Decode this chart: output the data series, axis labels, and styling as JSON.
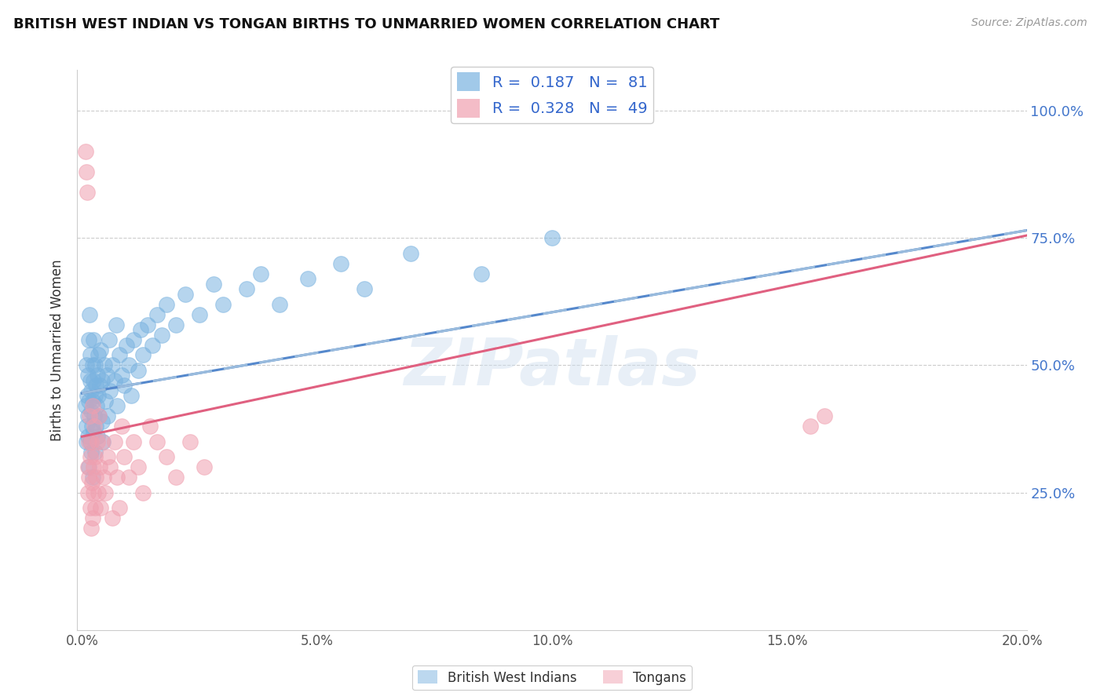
{
  "title": "BRITISH WEST INDIAN VS TONGAN BIRTHS TO UNMARRIED WOMEN CORRELATION CHART",
  "source": "Source: ZipAtlas.com",
  "ylabel": "Births to Unmarried Women",
  "legend_labels": [
    "British West Indians",
    "Tongans"
  ],
  "blue_R": 0.187,
  "blue_N": 81,
  "pink_R": 0.328,
  "pink_N": 49,
  "xlim": [
    -0.001,
    0.201
  ],
  "ylim": [
    -0.02,
    1.08
  ],
  "xtick_vals": [
    0.0,
    0.05,
    0.1,
    0.15,
    0.2
  ],
  "xtick_labels": [
    "0.0%",
    "5.0%",
    "10.0%",
    "15.0%",
    "20.0%"
  ],
  "ytick_vals": [
    0.25,
    0.5,
    0.75,
    1.0
  ],
  "ytick_labels": [
    "25.0%",
    "50.0%",
    "75.0%",
    "100.0%"
  ],
  "blue_color": "#7ab3e0",
  "pink_color": "#f0a0b0",
  "blue_line_color": "#5588cc",
  "pink_line_color": "#e06080",
  "blue_dash_color": "#99bbdd",
  "watermark_text": "ZIPatlas",
  "blue_line_x": [
    0.0,
    0.201
  ],
  "blue_line_y": [
    0.445,
    0.765
  ],
  "pink_line_x": [
    0.0,
    0.201
  ],
  "pink_line_y": [
    0.36,
    0.755
  ],
  "blue_scatter_x": [
    0.0008,
    0.0009,
    0.001,
    0.001,
    0.0011,
    0.0012,
    0.0013,
    0.0013,
    0.0014,
    0.0015,
    0.0015,
    0.0016,
    0.0017,
    0.0018,
    0.0018,
    0.0019,
    0.002,
    0.002,
    0.0021,
    0.0022,
    0.0022,
    0.0023,
    0.0024,
    0.0025,
    0.0025,
    0.0026,
    0.0027,
    0.0028,
    0.0028,
    0.0029,
    0.003,
    0.0031,
    0.0032,
    0.0033,
    0.0034,
    0.0035,
    0.0036,
    0.0038,
    0.004,
    0.0042,
    0.0043,
    0.0045,
    0.0047,
    0.005,
    0.0053,
    0.0055,
    0.0058,
    0.006,
    0.0065,
    0.007,
    0.0072,
    0.0075,
    0.008,
    0.0085,
    0.009,
    0.0095,
    0.01,
    0.0105,
    0.011,
    0.012,
    0.0125,
    0.013,
    0.014,
    0.015,
    0.016,
    0.017,
    0.018,
    0.02,
    0.022,
    0.025,
    0.028,
    0.03,
    0.035,
    0.038,
    0.042,
    0.048,
    0.055,
    0.06,
    0.07,
    0.085,
    0.1
  ],
  "blue_scatter_y": [
    0.42,
    0.38,
    0.5,
    0.35,
    0.44,
    0.4,
    0.36,
    0.48,
    0.55,
    0.43,
    0.3,
    0.6,
    0.47,
    0.35,
    0.52,
    0.41,
    0.45,
    0.33,
    0.38,
    0.5,
    0.28,
    0.43,
    0.47,
    0.37,
    0.55,
    0.4,
    0.44,
    0.33,
    0.5,
    0.46,
    0.38,
    0.42,
    0.48,
    0.36,
    0.52,
    0.44,
    0.4,
    0.46,
    0.53,
    0.39,
    0.47,
    0.35,
    0.5,
    0.43,
    0.48,
    0.4,
    0.55,
    0.45,
    0.5,
    0.47,
    0.58,
    0.42,
    0.52,
    0.48,
    0.46,
    0.54,
    0.5,
    0.44,
    0.55,
    0.49,
    0.57,
    0.52,
    0.58,
    0.54,
    0.6,
    0.56,
    0.62,
    0.58,
    0.64,
    0.6,
    0.66,
    0.62,
    0.65,
    0.68,
    0.62,
    0.67,
    0.7,
    0.65,
    0.72,
    0.68,
    0.75
  ],
  "pink_scatter_x": [
    0.0008,
    0.001,
    0.0011,
    0.0012,
    0.0013,
    0.0014,
    0.0015,
    0.0016,
    0.0017,
    0.0018,
    0.0019,
    0.002,
    0.0021,
    0.0022,
    0.0023,
    0.0024,
    0.0025,
    0.0026,
    0.0027,
    0.0028,
    0.003,
    0.0032,
    0.0034,
    0.0036,
    0.0038,
    0.004,
    0.0043,
    0.0046,
    0.005,
    0.0055,
    0.006,
    0.0065,
    0.007,
    0.0075,
    0.008,
    0.0085,
    0.009,
    0.01,
    0.011,
    0.012,
    0.013,
    0.0145,
    0.016,
    0.018,
    0.02,
    0.023,
    0.026,
    0.155,
    0.158
  ],
  "pink_scatter_y": [
    0.92,
    0.88,
    0.84,
    0.3,
    0.25,
    0.35,
    0.28,
    0.4,
    0.22,
    0.32,
    0.18,
    0.35,
    0.27,
    0.42,
    0.2,
    0.3,
    0.25,
    0.38,
    0.22,
    0.32,
    0.28,
    0.35,
    0.25,
    0.4,
    0.3,
    0.22,
    0.35,
    0.28,
    0.25,
    0.32,
    0.3,
    0.2,
    0.35,
    0.28,
    0.22,
    0.38,
    0.32,
    0.28,
    0.35,
    0.3,
    0.25,
    0.38,
    0.35,
    0.32,
    0.28,
    0.35,
    0.3,
    0.38,
    0.4
  ]
}
